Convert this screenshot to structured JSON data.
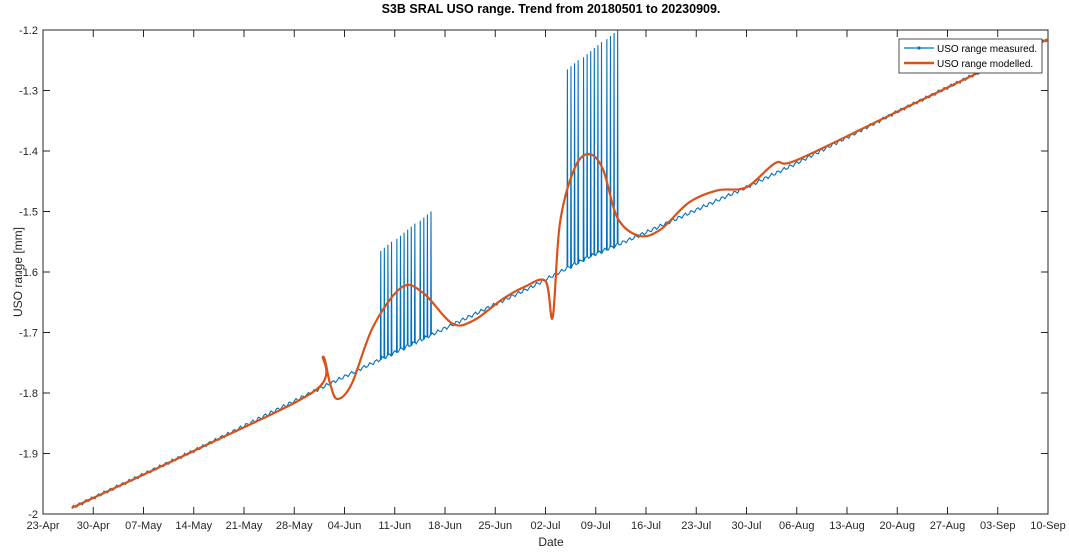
{
  "chart_data": {
    "type": "line",
    "title": "S3B SRAL USO range. Trend from 20180501 to 20230909.",
    "xlabel": "Date",
    "ylabel": "USO range [mm]",
    "xlim": [
      "2018-04-23",
      "2018-09-10"
    ],
    "ylim": [
      -2.0,
      -1.2
    ],
    "x_ticks": [
      "23-Apr",
      "30-Apr",
      "07-May",
      "14-May",
      "21-May",
      "28-May",
      "04-Jun",
      "11-Jun",
      "18-Jun",
      "25-Jun",
      "02-Jul",
      "09-Jul",
      "16-Jul",
      "23-Jul",
      "30-Jul",
      "06-Aug",
      "13-Aug",
      "20-Aug",
      "27-Aug",
      "03-Sep",
      "10-Sep"
    ],
    "y_ticks": [
      "-2",
      "-1.9",
      "-1.8",
      "-1.7",
      "-1.6",
      "-1.5",
      "-1.4",
      "-1.3",
      "-1.2"
    ],
    "grid": false,
    "legend_position": "top-right",
    "series": [
      {
        "name": "USO range measured.",
        "color": "#0072BD",
        "marker": "dot",
        "baseline_points": [
          {
            "x": "2018-04-27",
            "y": -1.99
          },
          {
            "x": "2018-05-15",
            "y": -1.89
          },
          {
            "x": "2018-06-01",
            "y": -1.79
          },
          {
            "x": "2018-06-15",
            "y": -1.71
          },
          {
            "x": "2018-06-30",
            "y": -1.625
          },
          {
            "x": "2018-07-08",
            "y": -1.575
          },
          {
            "x": "2018-07-15",
            "y": -1.54
          },
          {
            "x": "2018-07-30",
            "y": -1.46
          },
          {
            "x": "2018-08-06",
            "y": -1.42
          },
          {
            "x": "2018-08-20",
            "y": -1.335
          },
          {
            "x": "2018-09-10",
            "y": -1.215
          }
        ],
        "spikes": [
          {
            "x_start": "2018-06-09",
            "x_end": "2018-06-16",
            "count": 14,
            "peak_start": -1.565,
            "peak_end": -1.5
          },
          {
            "x_start": "2018-07-05",
            "x_end": "2018-07-12",
            "count": 14,
            "peak_start": -1.265,
            "peak_end": -1.2
          }
        ]
      },
      {
        "name": "USO range modelled.",
        "color": "#D95319",
        "points": [
          {
            "x": "2018-04-27",
            "y": -1.99
          },
          {
            "x": "2018-05-15",
            "y": -1.89
          },
          {
            "x": "2018-05-31",
            "y": -1.795
          },
          {
            "x": "2018-06-01",
            "y": -1.74
          },
          {
            "x": "2018-06-02",
            "y": -1.785
          },
          {
            "x": "2018-06-03",
            "y": -1.81
          },
          {
            "x": "2018-06-05",
            "y": -1.785
          },
          {
            "x": "2018-06-08",
            "y": -1.69
          },
          {
            "x": "2018-06-12",
            "y": -1.625
          },
          {
            "x": "2018-06-15",
            "y": -1.635
          },
          {
            "x": "2018-06-19",
            "y": -1.685
          },
          {
            "x": "2018-06-22",
            "y": -1.68
          },
          {
            "x": "2018-06-26",
            "y": -1.645
          },
          {
            "x": "2018-06-29",
            "y": -1.625
          },
          {
            "x": "2018-07-02",
            "y": -1.615
          },
          {
            "x": "2018-07-03",
            "y": -1.675
          },
          {
            "x": "2018-07-04",
            "y": -1.52
          },
          {
            "x": "2018-07-06",
            "y": -1.43
          },
          {
            "x": "2018-07-08",
            "y": -1.405
          },
          {
            "x": "2018-07-10",
            "y": -1.43
          },
          {
            "x": "2018-07-12",
            "y": -1.51
          },
          {
            "x": "2018-07-15",
            "y": -1.54
          },
          {
            "x": "2018-07-18",
            "y": -1.53
          },
          {
            "x": "2018-07-22",
            "y": -1.485
          },
          {
            "x": "2018-07-26",
            "y": -1.465
          },
          {
            "x": "2018-07-30",
            "y": -1.46
          },
          {
            "x": "2018-08-03",
            "y": -1.42
          },
          {
            "x": "2018-08-06",
            "y": -1.415
          },
          {
            "x": "2018-08-20",
            "y": -1.335
          },
          {
            "x": "2018-09-10",
            "y": -1.215
          }
        ]
      }
    ]
  }
}
